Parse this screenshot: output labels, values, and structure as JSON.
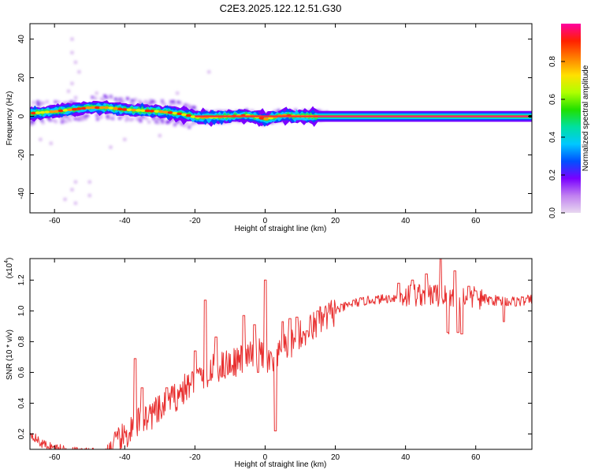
{
  "figure": {
    "title": "C2E3.2025.122.12.51.G30"
  },
  "chart_data": [
    {
      "type": "heatmap",
      "xlabel": "Height of straight line (km)",
      "ylabel": "Frequency (Hz)",
      "xlim": [
        -67,
        76
      ],
      "ylim": [
        -50,
        48
      ],
      "x_ticks": [
        -60,
        -40,
        -20,
        0,
        20,
        40,
        60
      ],
      "y_ticks": [
        -40,
        -20,
        0,
        20,
        40
      ],
      "grid": false,
      "colorbar": {
        "label": "Normalized spectral amplitude",
        "ticks": [
          0.0,
          0.2,
          0.4,
          0.6,
          0.8
        ],
        "tick_labels": [
          "0.0",
          "0.2",
          "0.4",
          "0.6",
          "0.8"
        ],
        "colors": [
          "#e8d8f0",
          "#c080f0",
          "#7a00ff",
          "#0050ff",
          "#00c8ff",
          "#00e0a0",
          "#20e000",
          "#b0ff00",
          "#ffe000",
          "#ff8000",
          "#ff2000",
          "#ff00a0"
        ]
      },
      "ridge": {
        "x": [
          -67,
          -60,
          -55,
          -50,
          -45,
          -40,
          -35,
          -30,
          -25,
          -22,
          -20,
          -15,
          -10,
          -5,
          -2,
          0,
          5,
          10,
          15,
          76
        ],
        "freq": [
          1.5,
          2.5,
          3.5,
          4.5,
          4.5,
          3.5,
          3.0,
          2.5,
          1.5,
          0.5,
          -0.5,
          -0.5,
          0,
          0.5,
          -0.5,
          -1.5,
          0.5,
          0,
          0,
          0
        ]
      },
      "outliers": [
        {
          "x": -55,
          "freq": 40
        },
        {
          "x": -55,
          "freq": 33
        },
        {
          "x": -54,
          "freq": 28
        },
        {
          "x": -53,
          "freq": 23
        },
        {
          "x": -55,
          "freq": 17
        },
        {
          "x": -56,
          "freq": 13
        },
        {
          "x": -48,
          "freq": 12
        },
        {
          "x": -54,
          "freq": -34
        },
        {
          "x": -55,
          "freq": -38
        },
        {
          "x": -57,
          "freq": -43
        },
        {
          "x": -50,
          "freq": -34
        },
        {
          "x": -50,
          "freq": -41
        },
        {
          "x": -54,
          "freq": -45
        },
        {
          "x": -16,
          "freq": 23
        },
        {
          "x": -25,
          "freq": 12
        },
        {
          "x": -61,
          "freq": -14
        },
        {
          "x": -44,
          "freq": -16
        },
        {
          "x": -40,
          "freq": -12
        },
        {
          "x": -30,
          "freq": -10
        },
        {
          "x": -64,
          "freq": -12
        }
      ]
    },
    {
      "type": "line",
      "xlabel": "Height of straight line (km)",
      "ylabel": "SNR (10 * v/v)",
      "multiplier_label": "(x10",
      "multiplier_exp": "4",
      "xlim": [
        -67,
        76
      ],
      "ylim": [
        0.1,
        1.34
      ],
      "x_ticks": [
        -60,
        -40,
        -20,
        0,
        20,
        40,
        60
      ],
      "y_ticks": [
        0.2,
        0.4,
        0.6,
        0.8,
        1.0,
        1.2
      ],
      "y_tick_labels": [
        "0.2",
        "0.4",
        "0.6",
        "0.8",
        "1.0",
        "1.2"
      ],
      "grid": false,
      "color": "#e83030",
      "trend": {
        "x": [
          -67,
          -64,
          -60,
          -55,
          -50,
          -45,
          -40,
          -35,
          -30,
          -25,
          -20,
          -15,
          -10,
          -5,
          -2,
          2,
          5,
          10,
          15,
          20,
          25,
          30,
          35,
          40,
          45,
          50,
          55,
          60,
          65,
          70,
          76
        ],
        "y": [
          0.21,
          0.14,
          0.11,
          0.09,
          0.08,
          0.08,
          0.18,
          0.3,
          0.35,
          0.45,
          0.55,
          0.62,
          0.66,
          0.7,
          0.73,
          0.65,
          0.74,
          0.84,
          0.92,
          1.0,
          1.05,
          1.07,
          1.08,
          1.1,
          1.11,
          1.1,
          1.09,
          1.08,
          1.07,
          1.06,
          1.07
        ]
      },
      "spikes": [
        {
          "x": -37,
          "y": 0.69
        },
        {
          "x": -35,
          "y": 0.5
        },
        {
          "x": -28,
          "y": 0.5
        },
        {
          "x": -20,
          "y": 0.74
        },
        {
          "x": -17,
          "y": 1.07
        },
        {
          "x": -16,
          "y": 0.55
        },
        {
          "x": -14,
          "y": 0.83
        },
        {
          "x": -6,
          "y": 0.97
        },
        {
          "x": -3,
          "y": 0.91
        },
        {
          "x": 0,
          "y": 1.2
        },
        {
          "x": 3,
          "y": 0.22
        },
        {
          "x": 5,
          "y": 0.93
        },
        {
          "x": 7,
          "y": 0.95
        },
        {
          "x": 9,
          "y": 0.96
        },
        {
          "x": 12,
          "y": 0.87
        },
        {
          "x": 15,
          "y": 1.0
        },
        {
          "x": 38,
          "y": 1.18
        },
        {
          "x": 42,
          "y": 1.2
        },
        {
          "x": 46,
          "y": 1.24
        },
        {
          "x": 50,
          "y": 1.34
        },
        {
          "x": 52,
          "y": 0.85
        },
        {
          "x": 54,
          "y": 1.26
        },
        {
          "x": 55,
          "y": 0.86
        },
        {
          "x": 58,
          "y": 1.16
        },
        {
          "x": 60,
          "y": 1.13
        },
        {
          "x": 68,
          "y": 0.93
        }
      ],
      "dips": [
        {
          "x": -47,
          "y": 0.1
        },
        {
          "x": -2,
          "y": 0.6
        },
        {
          "x": 3,
          "y": 0.22
        },
        {
          "x": 52,
          "y": 0.86
        },
        {
          "x": 56,
          "y": 0.85
        },
        {
          "x": 68,
          "y": 0.93
        }
      ]
    }
  ]
}
